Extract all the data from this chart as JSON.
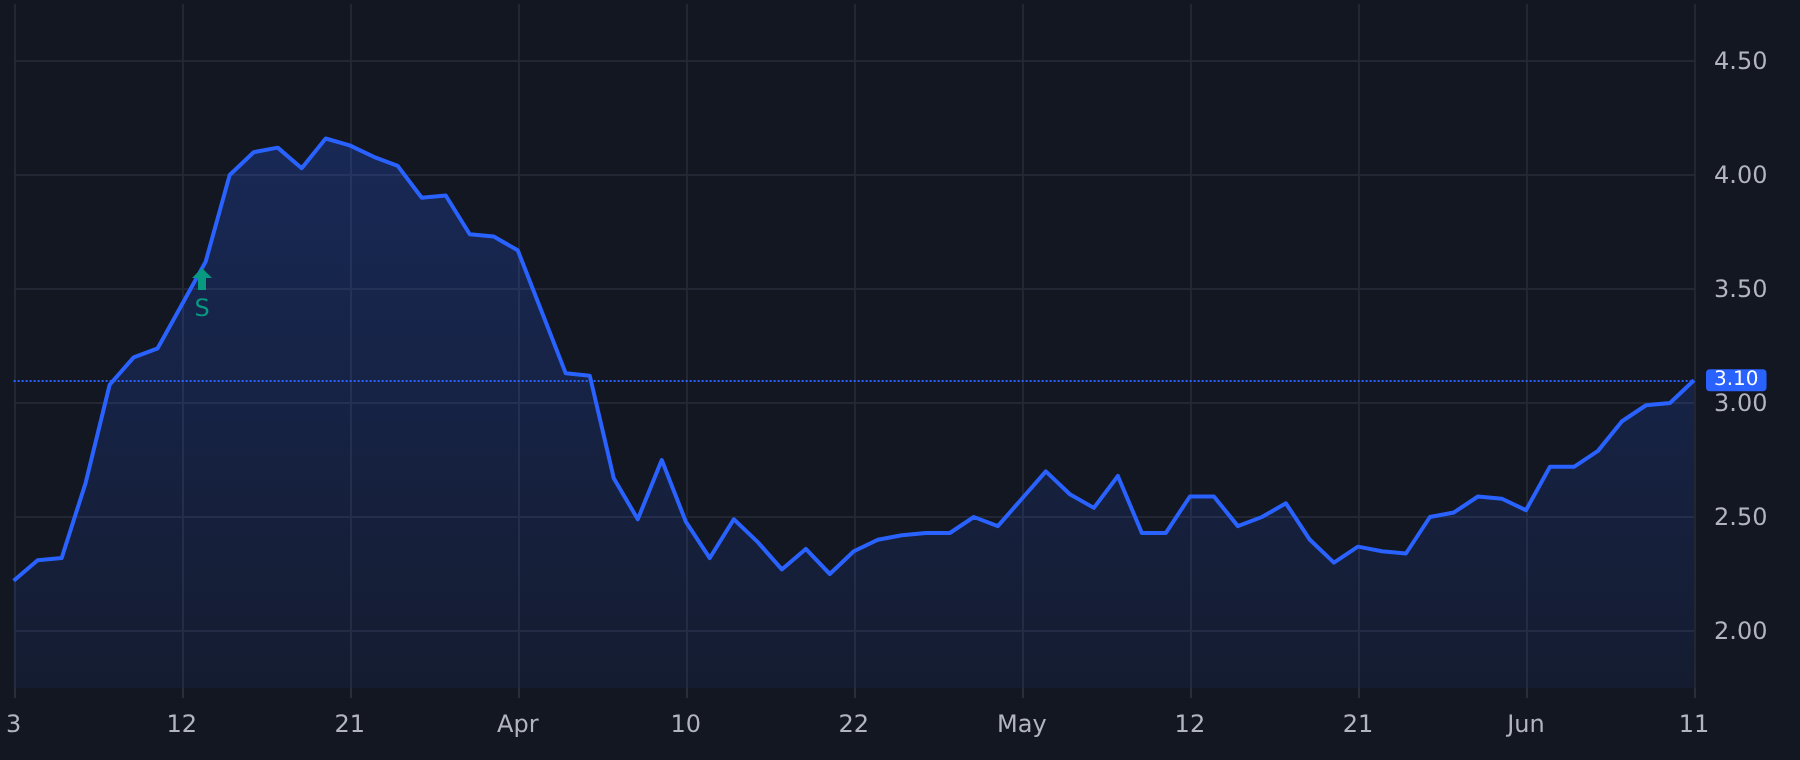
{
  "chart_data": {
    "type": "area",
    "categories": [
      "3",
      null,
      null,
      null,
      null,
      null,
      null,
      "12",
      null,
      null,
      null,
      null,
      null,
      null,
      "21",
      null,
      null,
      null,
      null,
      null,
      null,
      "Apr",
      null,
      null,
      null,
      null,
      null,
      null,
      "10",
      null,
      null,
      null,
      null,
      null,
      null,
      "22",
      null,
      null,
      null,
      null,
      null,
      null,
      "May",
      null,
      null,
      null,
      null,
      null,
      null,
      "12",
      null,
      null,
      null,
      null,
      null,
      null,
      "21",
      null,
      null,
      null,
      null,
      null,
      null,
      "Jun",
      null,
      null,
      null,
      null,
      null,
      null,
      "11"
    ],
    "series": [
      {
        "color": "#2962ff",
        "values": [
          2.22,
          2.31,
          2.32,
          2.65,
          3.08,
          3.2,
          3.24,
          3.43,
          3.62,
          4.0,
          4.1,
          4.12,
          4.03,
          4.16,
          4.13,
          4.08,
          4.04,
          3.9,
          3.91,
          3.74,
          3.73,
          3.67,
          3.4,
          3.13,
          3.12,
          2.67,
          2.49,
          2.75,
          2.48,
          2.32,
          2.49,
          2.39,
          2.27,
          2.36,
          2.25,
          2.35,
          2.4,
          2.42,
          2.43,
          2.43,
          2.5,
          2.46,
          2.58,
          2.7,
          2.6,
          2.54,
          2.68,
          2.43,
          2.43,
          2.59,
          2.59,
          2.46,
          2.5,
          2.56,
          2.4,
          2.3,
          2.37,
          2.35,
          2.34,
          2.5,
          2.52,
          2.59,
          2.58,
          2.53,
          2.72,
          2.72,
          2.79,
          2.92,
          2.99,
          3.0,
          3.1
        ]
      }
    ],
    "ylim": [
      1.75,
      4.75
    ],
    "yticks": [
      {
        "value": 2,
        "label": "2.00"
      },
      {
        "value": 2.5,
        "label": "2.50"
      },
      {
        "value": 3,
        "label": "3.00"
      },
      {
        "value": 3.5,
        "label": "3.50"
      },
      {
        "value": 4,
        "label": "4.00"
      },
      {
        "value": 4.5,
        "label": "4.50"
      }
    ],
    "ref_lines": [
      {
        "axis": "y",
        "value": 3.1,
        "label": "3.10",
        "color": "#2962ff",
        "line_style": "dotted"
      }
    ],
    "annotations": [
      "S"
    ],
    "grid": true,
    "marker": "none"
  }
}
